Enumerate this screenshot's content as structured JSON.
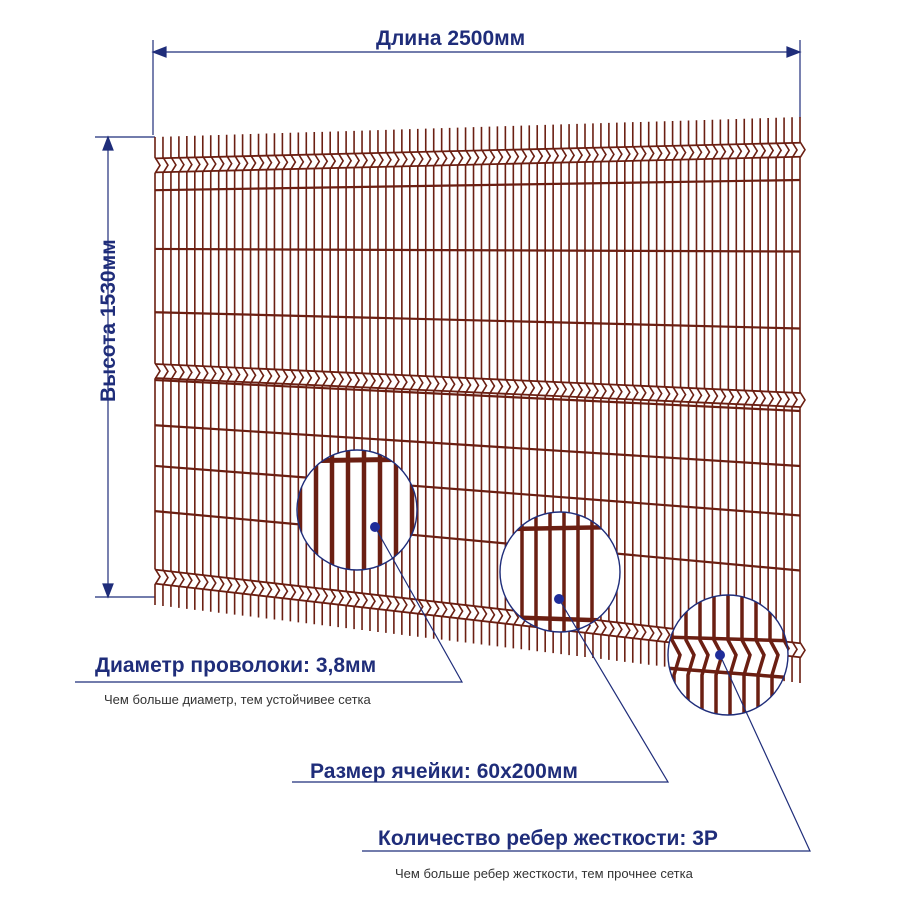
{
  "dimensions": {
    "length_label": "Длина 2500мм",
    "height_label": "Высота 1530мм"
  },
  "callouts": {
    "wire_diameter": {
      "title": "Диаметр проволоки: 3,8мм",
      "note": "Чем больше диаметр, тем устойчивее сетка"
    },
    "cell_size": {
      "title": "Размер ячейки: 60х200мм"
    },
    "ribs": {
      "title": "Количество ребер жесткости: 3Р",
      "note": "Чем больше ребер жесткости, тем прочнее сетка"
    }
  },
  "colors": {
    "wire": "#6b1f12",
    "annotation": "#1f2d7a",
    "note_text": "#333333"
  }
}
